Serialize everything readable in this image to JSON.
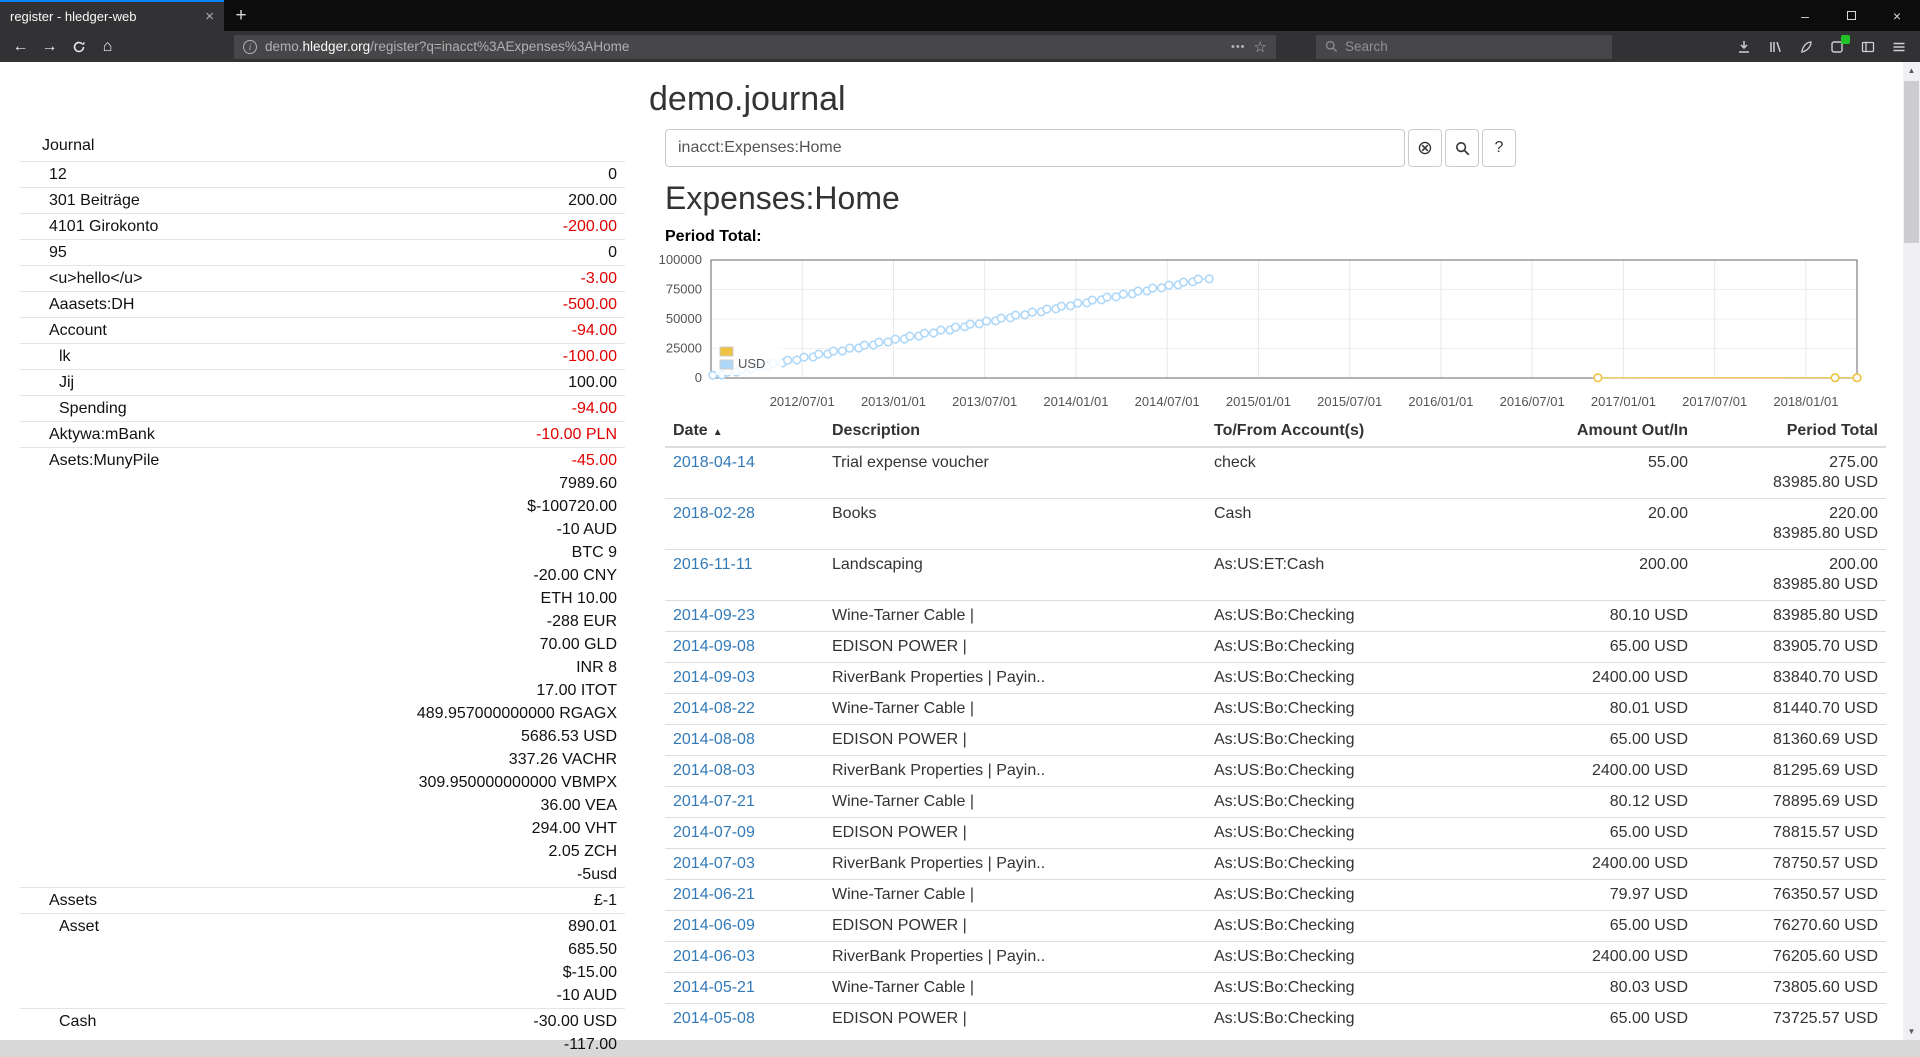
{
  "browser": {
    "tab_title": "register - hledger-web",
    "url_subdomain": "demo.",
    "url_domain": "hledger.org",
    "url_path": "/register?q=inacct%3AExpenses%3AHome",
    "search_placeholder": "Search",
    "accent_color": "#0a84ff"
  },
  "page": {
    "title": "demo.journal",
    "account_heading": "Expenses:Home",
    "query_value": "inacct:Expenses:Home",
    "help_label": "?"
  },
  "colors": {
    "negative": "#e00000",
    "link": "#337ab7",
    "series_other": "#edc240",
    "series_usd": "#afd8f8"
  },
  "sidebar": {
    "heading": "Journal",
    "accounts": [
      {
        "name": "12",
        "depth": 0,
        "lines": [
          {
            "t": "0"
          }
        ]
      },
      {
        "name": "301 Beiträge",
        "depth": 0,
        "lines": [
          {
            "t": "200.00"
          }
        ]
      },
      {
        "name": "4101 Girokonto",
        "depth": 0,
        "lines": [
          {
            "t": "-200.00",
            "neg": true
          }
        ]
      },
      {
        "name": "95",
        "depth": 0,
        "lines": [
          {
            "t": "0"
          }
        ]
      },
      {
        "name": "<u>hello</u>",
        "depth": 0,
        "lines": [
          {
            "t": "-3.00",
            "neg": true
          }
        ]
      },
      {
        "name": "Aaasets:DH",
        "depth": 0,
        "lines": [
          {
            "t": "-500.00",
            "neg": true
          }
        ]
      },
      {
        "name": "Account",
        "depth": 0,
        "lines": [
          {
            "t": "-94.00",
            "neg": true
          }
        ]
      },
      {
        "name": "lk",
        "depth": 1,
        "lines": [
          {
            "t": "-100.00",
            "neg": true
          }
        ]
      },
      {
        "name": "Jij",
        "depth": 1,
        "lines": [
          {
            "t": "100.00"
          }
        ]
      },
      {
        "name": "Spending",
        "depth": 1,
        "lines": [
          {
            "t": "-94.00",
            "neg": true
          }
        ]
      },
      {
        "name": "Aktywa:mBank",
        "depth": 0,
        "lines": [
          {
            "t": "-10.00 PLN",
            "neg": true
          }
        ]
      },
      {
        "name": "Asets:MunyPile",
        "depth": 0,
        "lines": [
          {
            "t": "-45.00",
            "neg": true
          },
          {
            "t": "7989.60"
          },
          {
            "t": "$-100720.00"
          },
          {
            "t": "-10 AUD"
          },
          {
            "t": "BTC 9"
          },
          {
            "t": "-20.00 CNY"
          },
          {
            "t": "ETH 10.00"
          },
          {
            "t": "-288 EUR"
          },
          {
            "t": "70.00 GLD"
          },
          {
            "t": "INR 8"
          },
          {
            "t": "17.00 ITOT"
          },
          {
            "t": "489.957000000000 RGAGX"
          },
          {
            "t": "5686.53 USD"
          },
          {
            "t": "337.26 VACHR"
          },
          {
            "t": "309.950000000000 VBMPX"
          },
          {
            "t": "36.00 VEA"
          },
          {
            "t": "294.00 VHT"
          },
          {
            "t": "2.05 ZCH"
          },
          {
            "t": "-5usd"
          }
        ]
      },
      {
        "name": "Assets",
        "depth": 0,
        "lines": [
          {
            "t": "£-1"
          }
        ]
      },
      {
        "name": "Asset",
        "depth": 1,
        "lines": [
          {
            "t": "890.01"
          },
          {
            "t": "685.50"
          },
          {
            "t": "$-15.00"
          },
          {
            "t": "-10 AUD"
          }
        ]
      },
      {
        "name": "Cash",
        "depth": 1,
        "lines": [
          {
            "t": "-30.00 USD"
          },
          {
            "t": "-117.00"
          }
        ]
      }
    ]
  },
  "register": {
    "columns": [
      "Date",
      "Description",
      "To/From Account(s)",
      "Amount Out/In",
      "Period Total"
    ],
    "rows": [
      {
        "date": "2018-04-14",
        "description": "Trial expense voucher",
        "account": "check",
        "amount": "55.00",
        "totals": [
          "275.00",
          "83985.80 USD"
        ]
      },
      {
        "date": "2018-02-28",
        "description": "Books",
        "account": "Cash",
        "amount": "20.00",
        "totals": [
          "220.00",
          "83985.80 USD"
        ]
      },
      {
        "date": "2016-11-11",
        "description": "Landscaping",
        "account": "As:US:ET:Cash",
        "amount": "200.00",
        "totals": [
          "200.00",
          "83985.80 USD"
        ]
      },
      {
        "date": "2014-09-23",
        "description": "Wine-Tarner Cable |",
        "account": "As:US:Bo:Checking",
        "amount": "80.10 USD",
        "totals": [
          "83985.80 USD"
        ]
      },
      {
        "date": "2014-09-08",
        "description": "EDISON POWER |",
        "account": "As:US:Bo:Checking",
        "amount": "65.00 USD",
        "totals": [
          "83905.70 USD"
        ]
      },
      {
        "date": "2014-09-03",
        "description": "RiverBank Properties | Payin..",
        "account": "As:US:Bo:Checking",
        "amount": "2400.00 USD",
        "totals": [
          "83840.70 USD"
        ]
      },
      {
        "date": "2014-08-22",
        "description": "Wine-Tarner Cable |",
        "account": "As:US:Bo:Checking",
        "amount": "80.01 USD",
        "totals": [
          "81440.70 USD"
        ]
      },
      {
        "date": "2014-08-08",
        "description": "EDISON POWER |",
        "account": "As:US:Bo:Checking",
        "amount": "65.00 USD",
        "totals": [
          "81360.69 USD"
        ]
      },
      {
        "date": "2014-08-03",
        "description": "RiverBank Properties | Payin..",
        "account": "As:US:Bo:Checking",
        "amount": "2400.00 USD",
        "totals": [
          "81295.69 USD"
        ]
      },
      {
        "date": "2014-07-21",
        "description": "Wine-Tarner Cable |",
        "account": "As:US:Bo:Checking",
        "amount": "80.12 USD",
        "totals": [
          "78895.69 USD"
        ]
      },
      {
        "date": "2014-07-09",
        "description": "EDISON POWER |",
        "account": "As:US:Bo:Checking",
        "amount": "65.00 USD",
        "totals": [
          "78815.57 USD"
        ]
      },
      {
        "date": "2014-07-03",
        "description": "RiverBank Properties | Payin..",
        "account": "As:US:Bo:Checking",
        "amount": "2400.00 USD",
        "totals": [
          "78750.57 USD"
        ]
      },
      {
        "date": "2014-06-21",
        "description": "Wine-Tarner Cable |",
        "account": "As:US:Bo:Checking",
        "amount": "79.97 USD",
        "totals": [
          "76350.57 USD"
        ]
      },
      {
        "date": "2014-06-09",
        "description": "EDISON POWER |",
        "account": "As:US:Bo:Checking",
        "amount": "65.00 USD",
        "totals": [
          "76270.60 USD"
        ]
      },
      {
        "date": "2014-06-03",
        "description": "RiverBank Properties | Payin..",
        "account": "As:US:Bo:Checking",
        "amount": "2400.00 USD",
        "totals": [
          "76205.60 USD"
        ]
      },
      {
        "date": "2014-05-21",
        "description": "Wine-Tarner Cable |",
        "account": "As:US:Bo:Checking",
        "amount": "80.03 USD",
        "totals": [
          "73805.60 USD"
        ]
      },
      {
        "date": "2014-05-08",
        "description": "EDISON POWER |",
        "account": "As:US:Bo:Checking",
        "amount": "65.00 USD",
        "totals": [
          "73725.57 USD"
        ]
      }
    ]
  },
  "chart_data": {
    "type": "line",
    "title": "Period Total:",
    "x_ticks": [
      "2012/07/01",
      "2013/01/01",
      "2013/07/01",
      "2014/01/01",
      "2014/07/01",
      "2015/01/01",
      "2015/07/01",
      "2016/01/01",
      "2016/07/01",
      "2017/01/01",
      "2017/07/01",
      "2018/01/01"
    ],
    "y_ticks": [
      0,
      25000,
      50000,
      75000,
      100000
    ],
    "x_range": [
      2012.0,
      2018.28
    ],
    "y_range": [
      0,
      100000
    ],
    "grid": true,
    "legend_position": "bottom-left",
    "series": [
      {
        "name": "",
        "color": "#edc240",
        "points": [
          [
            2016.86,
            200
          ],
          [
            2018.16,
            220
          ],
          [
            2018.28,
            275
          ]
        ]
      },
      {
        "name": "USD",
        "color": "#afd8f8",
        "points": [
          [
            2012.01,
            2400
          ],
          [
            2012.06,
            2545
          ],
          [
            2012.09,
            4945
          ],
          [
            2012.14,
            5090
          ],
          [
            2012.17,
            7490
          ],
          [
            2012.22,
            7635
          ],
          [
            2012.26,
            10035
          ],
          [
            2012.31,
            10180
          ],
          [
            2012.34,
            12580
          ],
          [
            2012.39,
            12725
          ],
          [
            2012.42,
            15125
          ],
          [
            2012.47,
            15270
          ],
          [
            2012.51,
            17670
          ],
          [
            2012.56,
            17815
          ],
          [
            2012.59,
            20215
          ],
          [
            2012.64,
            20360
          ],
          [
            2012.67,
            22760
          ],
          [
            2012.72,
            22905
          ],
          [
            2012.76,
            25305
          ],
          [
            2012.81,
            25450
          ],
          [
            2012.84,
            27850
          ],
          [
            2012.89,
            27995
          ],
          [
            2012.92,
            30395
          ],
          [
            2012.97,
            30540
          ],
          [
            2013.01,
            32940
          ],
          [
            2013.06,
            33085
          ],
          [
            2013.09,
            35485
          ],
          [
            2013.14,
            35630
          ],
          [
            2013.17,
            38030
          ],
          [
            2013.22,
            38175
          ],
          [
            2013.26,
            40575
          ],
          [
            2013.31,
            40720
          ],
          [
            2013.34,
            43120
          ],
          [
            2013.39,
            43265
          ],
          [
            2013.42,
            45665
          ],
          [
            2013.47,
            45810
          ],
          [
            2013.51,
            48210
          ],
          [
            2013.56,
            48355
          ],
          [
            2013.59,
            50755
          ],
          [
            2013.64,
            50900
          ],
          [
            2013.67,
            53300
          ],
          [
            2013.72,
            53445
          ],
          [
            2013.76,
            55845
          ],
          [
            2013.81,
            55990
          ],
          [
            2013.84,
            58390
          ],
          [
            2013.89,
            58535
          ],
          [
            2013.92,
            60935
          ],
          [
            2013.97,
            61080
          ],
          [
            2014.01,
            63480
          ],
          [
            2014.06,
            63625
          ],
          [
            2014.09,
            66025
          ],
          [
            2014.14,
            66170
          ],
          [
            2014.17,
            68570
          ],
          [
            2014.22,
            68715
          ],
          [
            2014.26,
            71115
          ],
          [
            2014.31,
            71260
          ],
          [
            2014.34,
            73660
          ],
          [
            2014.39,
            73805
          ],
          [
            2014.42,
            76205
          ],
          [
            2014.47,
            76350
          ],
          [
            2014.51,
            78750
          ],
          [
            2014.56,
            78895
          ],
          [
            2014.59,
            81295
          ],
          [
            2014.64,
            81440
          ],
          [
            2014.67,
            83840
          ],
          [
            2014.73,
            83985.8
          ]
        ]
      }
    ]
  }
}
